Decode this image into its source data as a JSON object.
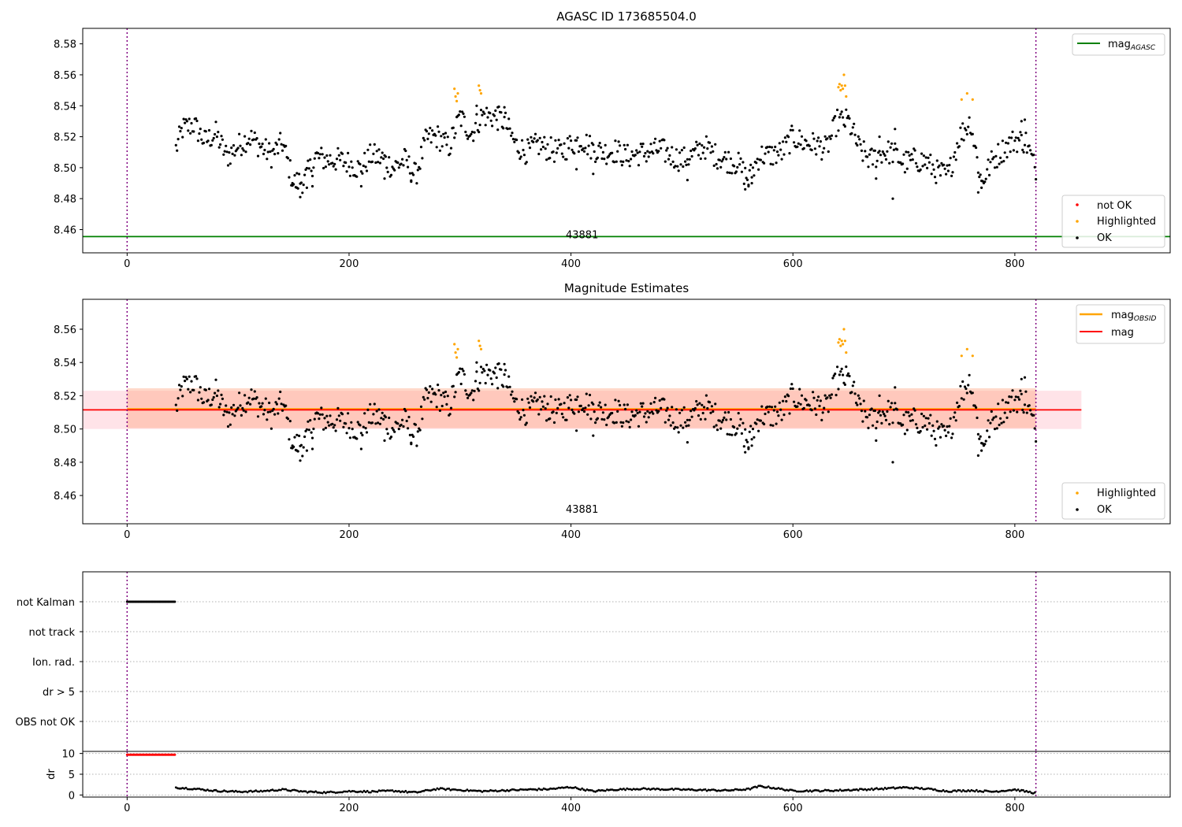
{
  "colors": {
    "ok": "#000000",
    "highlighted": "#ffa500",
    "not_ok": "#ff0000",
    "mag_agasc": "#008000",
    "mag_obsid": "#ffa500",
    "mag": "#ff0000",
    "band_mag": "#ffc0cb",
    "band_obsid": "#ffa07a",
    "obsid_boundary": "#800080",
    "grid": "#b0b0b0"
  },
  "chart_data": [
    {
      "type": "scatter",
      "title": "AGASC ID 173685504.0",
      "xlim": [
        -40,
        940
      ],
      "ylim": [
        8.445,
        8.59
      ],
      "x_ticks": [
        0,
        200,
        400,
        600,
        800
      ],
      "y_ticks": [
        "8.46",
        "8.48",
        "8.50",
        "8.52",
        "8.54",
        "8.56",
        "8.58"
      ],
      "obsid_label": "43881",
      "obsid_label_x": 410,
      "obsid_label_y": 8.4555,
      "obsid_boundaries": [
        0,
        819
      ],
      "mag_agasc": 8.4555,
      "legend_top": "mag_AGASC",
      "legend_top_parts": [
        "mag",
        "AGASC"
      ],
      "legend_bottom": [
        "not OK",
        "Highlighted",
        "OK"
      ],
      "point_series": "mag_points"
    },
    {
      "type": "scatter",
      "title": "Magnitude Estimates",
      "xlim": [
        -40,
        940
      ],
      "ylim": [
        8.443,
        8.578
      ],
      "x_ticks": [
        0,
        200,
        400,
        600,
        800
      ],
      "y_ticks": [
        "8.46",
        "8.48",
        "8.50",
        "8.52",
        "8.54",
        "8.56"
      ],
      "obsid_label": "43881",
      "obsid_label_x": 410,
      "obsid_label_y": 8.4505,
      "obsid_boundaries": [
        0,
        819
      ],
      "mag_obsid": 8.512,
      "mag_obsid_band": [
        8.5005,
        8.5245
      ],
      "mag": 8.5115,
      "mag_band": [
        8.5,
        8.523
      ],
      "legend_top": [
        "mag_OBSID",
        "mag"
      ],
      "legend_top_parts": [
        [
          "mag",
          "OBSID"
        ],
        [
          "mag",
          ""
        ]
      ],
      "legend_bottom": [
        "Highlighted",
        "OK"
      ],
      "point_series": "mag_points"
    },
    {
      "type": "scatter",
      "title": "",
      "xlim": [
        -40,
        940
      ],
      "categories": [
        "not Kalman",
        "not track",
        "Ion. rad.",
        "dr > 5",
        "OBS not OK"
      ],
      "flag_points": {
        "not Kalman": {
          "x_start": 0,
          "x_end": 43,
          "step": 1
        }
      },
      "obsid_boundaries": [
        0,
        819
      ]
    },
    {
      "type": "scatter",
      "title": "",
      "ylabel": "dr",
      "xlim": [
        -40,
        940
      ],
      "ylim": [
        -0.5,
        10.5
      ],
      "x_ticks": [
        0,
        200,
        400,
        600,
        800
      ],
      "y_ticks": [
        "0",
        "5",
        "10"
      ],
      "not_ok_points": {
        "x_start": 0,
        "x_end": 43,
        "step": 1,
        "y": 9.7
      },
      "obsid_boundaries": [
        0,
        819
      ],
      "point_series": "dr_points"
    }
  ],
  "mag_points": {
    "highlighted": [
      [
        295,
        8.551
      ],
      [
        296,
        8.546
      ],
      [
        297,
        8.543
      ],
      [
        298,
        8.548
      ],
      [
        317,
        8.553
      ],
      [
        318,
        8.55
      ],
      [
        319,
        8.548
      ],
      [
        641,
        8.552
      ],
      [
        642,
        8.554
      ],
      [
        643,
        8.55
      ],
      [
        644,
        8.553
      ],
      [
        645,
        8.551
      ],
      [
        646,
        8.56
      ],
      [
        647,
        8.553
      ],
      [
        648,
        8.546
      ],
      [
        752,
        8.544
      ],
      [
        757,
        8.548
      ],
      [
        762,
        8.544
      ]
    ],
    "ok_anchors": [
      [
        44,
        8.512
      ],
      [
        50,
        8.525
      ],
      [
        60,
        8.528
      ],
      [
        70,
        8.517
      ],
      [
        80,
        8.522
      ],
      [
        90,
        8.507
      ],
      [
        100,
        8.514
      ],
      [
        110,
        8.52
      ],
      [
        120,
        8.514
      ],
      [
        130,
        8.508
      ],
      [
        140,
        8.516
      ],
      [
        150,
        8.49
      ],
      [
        160,
        8.492
      ],
      [
        170,
        8.507
      ],
      [
        180,
        8.505
      ],
      [
        190,
        8.505
      ],
      [
        200,
        8.503
      ],
      [
        210,
        8.499
      ],
      [
        220,
        8.508
      ],
      [
        230,
        8.506
      ],
      [
        240,
        8.5
      ],
      [
        250,
        8.505
      ],
      [
        260,
        8.495
      ],
      [
        270,
        8.519
      ],
      [
        280,
        8.52
      ],
      [
        290,
        8.513
      ],
      [
        300,
        8.533
      ],
      [
        310,
        8.522
      ],
      [
        320,
        8.534
      ],
      [
        330,
        8.533
      ],
      [
        340,
        8.53
      ],
      [
        350,
        8.515
      ],
      [
        360,
        8.51
      ],
      [
        370,
        8.515
      ],
      [
        380,
        8.512
      ],
      [
        390,
        8.51
      ],
      [
        400,
        8.515
      ],
      [
        410,
        8.518
      ],
      [
        420,
        8.512
      ],
      [
        430,
        8.51
      ],
      [
        440,
        8.511
      ],
      [
        450,
        8.507
      ],
      [
        460,
        8.509
      ],
      [
        470,
        8.51
      ],
      [
        480,
        8.512
      ],
      [
        490,
        8.508
      ],
      [
        500,
        8.505
      ],
      [
        510,
        8.508
      ],
      [
        520,
        8.514
      ],
      [
        530,
        8.508
      ],
      [
        540,
        8.505
      ],
      [
        550,
        8.503
      ],
      [
        560,
        8.492
      ],
      [
        570,
        8.508
      ],
      [
        580,
        8.508
      ],
      [
        590,
        8.51
      ],
      [
        600,
        8.52
      ],
      [
        610,
        8.516
      ],
      [
        620,
        8.515
      ],
      [
        630,
        8.512
      ],
      [
        640,
        8.53
      ],
      [
        650,
        8.53
      ],
      [
        660,
        8.512
      ],
      [
        670,
        8.505
      ],
      [
        680,
        8.51
      ],
      [
        690,
        8.51
      ],
      [
        700,
        8.503
      ],
      [
        710,
        8.505
      ],
      [
        720,
        8.504
      ],
      [
        730,
        8.497
      ],
      [
        740,
        8.495
      ],
      [
        750,
        8.52
      ],
      [
        760,
        8.53
      ],
      [
        770,
        8.49
      ],
      [
        780,
        8.505
      ],
      [
        790,
        8.512
      ],
      [
        800,
        8.518
      ],
      [
        810,
        8.517
      ],
      [
        818,
        8.5
      ]
    ],
    "ok_extra": [
      [
        149,
        8.49
      ],
      [
        153,
        8.487
      ],
      [
        156,
        8.481
      ],
      [
        162,
        8.487
      ],
      [
        167,
        8.488
      ],
      [
        211,
        8.488
      ],
      [
        232,
        8.493
      ],
      [
        256,
        8.491
      ],
      [
        315,
        8.54
      ],
      [
        334,
        8.539
      ],
      [
        340,
        8.539
      ],
      [
        405,
        8.499
      ],
      [
        420,
        8.496
      ],
      [
        505,
        8.492
      ],
      [
        557,
        8.486
      ],
      [
        560,
        8.488
      ],
      [
        563,
        8.49
      ],
      [
        675,
        8.493
      ],
      [
        690,
        8.48
      ],
      [
        678,
        8.52
      ],
      [
        692,
        8.525
      ],
      [
        767,
        8.484
      ],
      [
        770,
        8.487
      ],
      [
        806,
        8.53
      ],
      [
        809,
        8.531
      ]
    ]
  },
  "dr_points": {
    "anchors": [
      [
        44,
        1.8
      ],
      [
        60,
        1.5
      ],
      [
        80,
        1.0
      ],
      [
        100,
        0.8
      ],
      [
        120,
        0.9
      ],
      [
        140,
        1.3
      ],
      [
        160,
        0.8
      ],
      [
        180,
        0.6
      ],
      [
        200,
        0.9
      ],
      [
        220,
        0.8
      ],
      [
        240,
        1.0
      ],
      [
        260,
        0.6
      ],
      [
        280,
        1.5
      ],
      [
        300,
        1.2
      ],
      [
        320,
        0.9
      ],
      [
        340,
        1.1
      ],
      [
        360,
        1.3
      ],
      [
        380,
        1.4
      ],
      [
        400,
        1.9
      ],
      [
        420,
        0.9
      ],
      [
        440,
        1.3
      ],
      [
        460,
        1.5
      ],
      [
        480,
        1.4
      ],
      [
        500,
        1.3
      ],
      [
        520,
        1.2
      ],
      [
        540,
        1.1
      ],
      [
        560,
        1.4
      ],
      [
        570,
        2.1
      ],
      [
        580,
        1.8
      ],
      [
        600,
        1.0
      ],
      [
        620,
        1.0
      ],
      [
        640,
        1.1
      ],
      [
        660,
        1.3
      ],
      [
        680,
        1.5
      ],
      [
        700,
        1.8
      ],
      [
        720,
        1.5
      ],
      [
        740,
        0.9
      ],
      [
        760,
        1.1
      ],
      [
        780,
        0.8
      ],
      [
        800,
        1.3
      ],
      [
        818,
        0.5
      ]
    ]
  }
}
